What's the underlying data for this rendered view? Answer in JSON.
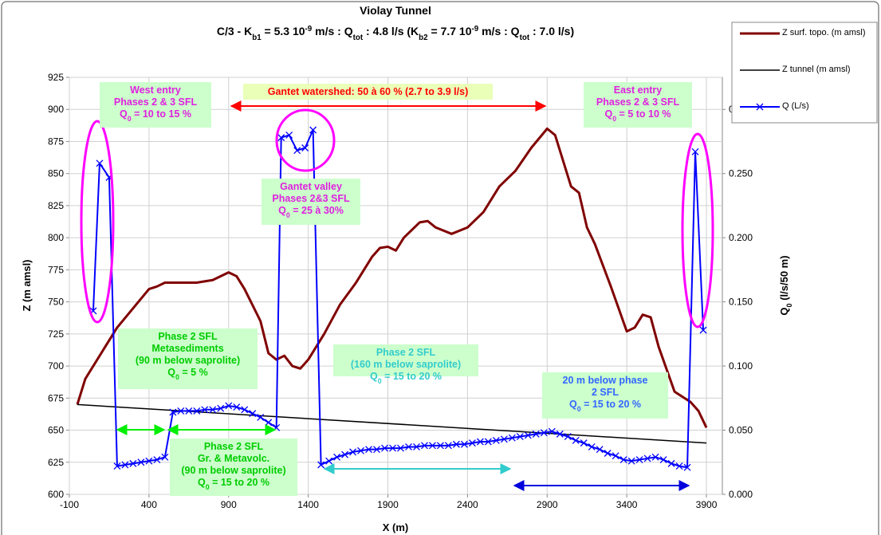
{
  "chart_data": {
    "type": "line",
    "title": "Violay Tunnel",
    "subtitle_parts": [
      {
        "text": "C/3 - K"
      },
      {
        "text": "b1",
        "script": "sub"
      },
      {
        "text": " = 5.3 10"
      },
      {
        "text": "-9",
        "script": "sup"
      },
      {
        "text": " m/s : Q"
      },
      {
        "text": "tot",
        "script": "sub"
      },
      {
        "text": " : 4.8 l/s (K"
      },
      {
        "text": "b2",
        "script": "sub"
      },
      {
        "text": " = 7.7 10"
      },
      {
        "text": "-9",
        "script": "sup"
      },
      {
        "text": " m/s : Q"
      },
      {
        "text": "tot",
        "script": "sub"
      },
      {
        "text": " : 7.0 l/s)"
      }
    ],
    "x_label": "X (m)",
    "y_label": "Z (m amsl)",
    "y2_label_parts": [
      {
        "text": "Q"
      },
      {
        "text": "0",
        "script": "sub"
      },
      {
        "text": " (l/s/50 m)"
      }
    ],
    "xlim": [
      -100,
      4000
    ],
    "xticks": [
      -100,
      400,
      900,
      1400,
      1900,
      2400,
      2900,
      3400,
      3900
    ],
    "ylim": [
      600,
      925
    ],
    "yticks": [
      600,
      625,
      650,
      675,
      700,
      725,
      750,
      775,
      800,
      825,
      850,
      875,
      900,
      925
    ],
    "y2lim": [
      0,
      0.325
    ],
    "y2ticks": [
      {
        "value": 0,
        "label": "0.000"
      },
      {
        "value": 0.05,
        "label": "0.050"
      },
      {
        "value": 0.1,
        "label": "0.100"
      },
      {
        "value": 0.15,
        "label": "0.150"
      },
      {
        "value": 0.2,
        "label": "0.200"
      },
      {
        "value": 0.25,
        "label": "0.250"
      },
      {
        "value": 0.3,
        "label": "0."
      }
    ],
    "grid": true,
    "legend": "right",
    "series": [
      {
        "name": "Z surf. topo. (m amsl)",
        "color": "#800000",
        "width": 3,
        "x": [
          -50,
          0,
          100,
          200,
          300,
          400,
          450,
          500,
          600,
          700,
          800,
          900,
          950,
          1000,
          1100,
          1150,
          1200,
          1250,
          1300,
          1350,
          1400,
          1500,
          1600,
          1700,
          1800,
          1850,
          1900,
          1950,
          2000,
          2100,
          2150,
          2200,
          2300,
          2400,
          2500,
          2600,
          2700,
          2800,
          2900,
          2950,
          3000,
          3050,
          3100,
          3150,
          3200,
          3300,
          3400,
          3450,
          3500,
          3550,
          3600,
          3700,
          3800,
          3850,
          3900
        ],
        "values": [
          670,
          690,
          710,
          730,
          745,
          760,
          762,
          765,
          765,
          765,
          767,
          773,
          770,
          760,
          735,
          710,
          705,
          708,
          700,
          698,
          705,
          725,
          748,
          765,
          785,
          792,
          793,
          790,
          800,
          812,
          813,
          808,
          803,
          808,
          820,
          840,
          852,
          870,
          885,
          880,
          860,
          840,
          835,
          808,
          795,
          762,
          727,
          730,
          740,
          738,
          715,
          680,
          672,
          665,
          652
        ]
      },
      {
        "name": "Z tunnel (m amsl)",
        "color": "#000000",
        "width": 1.5,
        "x": [
          -50,
          3900
        ],
        "values": [
          670,
          640
        ]
      },
      {
        "name": "Q (L/s)",
        "color": "#0000ff",
        "width": 2,
        "axis": "y2",
        "marker": "x",
        "x": [
          50,
          90,
          150,
          200,
          250,
          300,
          350,
          400,
          450,
          500,
          550,
          600,
          650,
          700,
          750,
          800,
          850,
          900,
          950,
          1000,
          1050,
          1100,
          1150,
          1200,
          1230,
          1280,
          1330,
          1380,
          1430,
          1480,
          1530,
          1580,
          1630,
          1680,
          1730,
          1780,
          1830,
          1880,
          1930,
          1980,
          2030,
          2080,
          2130,
          2180,
          2230,
          2280,
          2330,
          2380,
          2430,
          2480,
          2530,
          2580,
          2630,
          2680,
          2730,
          2780,
          2830,
          2880,
          2930,
          2980,
          3030,
          3080,
          3130,
          3180,
          3230,
          3280,
          3330,
          3380,
          3430,
          3480,
          3530,
          3580,
          3630,
          3680,
          3730,
          3780,
          3830,
          3880
        ],
        "values": [
          0.143,
          0.258,
          0.247,
          0.022,
          0.023,
          0.024,
          0.025,
          0.026,
          0.027,
          0.029,
          0.064,
          0.065,
          0.065,
          0.065,
          0.066,
          0.066,
          0.067,
          0.069,
          0.068,
          0.066,
          0.063,
          0.06,
          0.056,
          0.052,
          0.278,
          0.28,
          0.268,
          0.27,
          0.284,
          0.023,
          0.026,
          0.029,
          0.031,
          0.033,
          0.034,
          0.035,
          0.035,
          0.036,
          0.036,
          0.036,
          0.037,
          0.037,
          0.038,
          0.038,
          0.038,
          0.038,
          0.039,
          0.039,
          0.04,
          0.041,
          0.041,
          0.042,
          0.043,
          0.044,
          0.045,
          0.046,
          0.047,
          0.048,
          0.049,
          0.047,
          0.045,
          0.042,
          0.04,
          0.037,
          0.035,
          0.032,
          0.03,
          0.027,
          0.026,
          0.027,
          0.028,
          0.029,
          0.027,
          0.024,
          0.022,
          0.021,
          0.267,
          0.128
        ]
      }
    ],
    "annotations": [
      {
        "color": "#e020e0",
        "background": "#ccffcc",
        "lines": [
          "West entry",
          "Phases 2 & 3 SFL",
          [
            {
              "text": "Q"
            },
            {
              "text": "0",
              "script": "sub"
            },
            {
              "text": " = 10 to 15 %"
            }
          ]
        ]
      },
      {
        "color": "#ff0000",
        "background": "#eaffb8",
        "lines": [
          "Gantet watershed: 50 à 60 % (2.7 to 3.9 l/s)"
        ]
      },
      {
        "color": "#e020e0",
        "background": "#ccffcc",
        "lines": [
          "East entry",
          "Phases 2 & 3 SFL",
          [
            {
              "text": "Q"
            },
            {
              "text": "0",
              "script": "sub"
            },
            {
              "text": " =  5 to 10 %"
            }
          ]
        ]
      },
      {
        "color": "#e020e0",
        "background": "#ccffcc",
        "lines": [
          "Gantet valley",
          "Phases 2&3 SFL",
          [
            {
              "text": "Q"
            },
            {
              "text": "0",
              "script": "sub"
            },
            {
              "text": " = 25 à 30%"
            }
          ]
        ]
      },
      {
        "color": "#00cc00",
        "background": "#ccffcc",
        "lines": [
          "Phase 2 SFL",
          "Metasediments",
          "(90 m below saprolite)",
          [
            {
              "text": "Q"
            },
            {
              "text": "0",
              "script": "sub"
            },
            {
              "text": " =  5 %"
            }
          ]
        ]
      },
      {
        "color": "#33cccc",
        "background": "#ccffcc",
        "lines": [
          "Phase 2 SFL",
          "(160 m below saprolite)",
          [
            {
              "text": "Q"
            },
            {
              "text": "0",
              "script": "sub"
            },
            {
              "text": " = 15 to 20 %"
            }
          ]
        ]
      },
      {
        "color": "#3366ff",
        "background": "#ccffcc",
        "lines": [
          "20 m below phase",
          "2 SFL",
          [
            {
              "text": "Q"
            },
            {
              "text": "0",
              "script": "sub"
            },
            {
              "text": " = 15 to 20 %"
            }
          ]
        ]
      },
      {
        "color": "#00cc00",
        "background": "#ccffcc",
        "lines": [
          "Phase 2 SFL",
          "Gr. & Metavolc.",
          "(90 m below saprolite)",
          [
            {
              "text": "Q"
            },
            {
              "text": "0",
              "script": "sub"
            },
            {
              "text": " = 15 to 20 %"
            }
          ]
        ]
      }
    ]
  }
}
